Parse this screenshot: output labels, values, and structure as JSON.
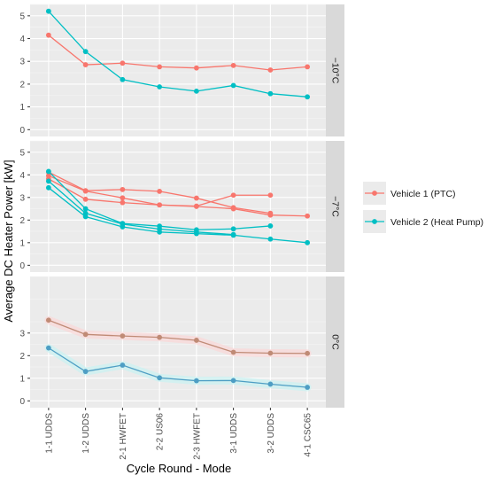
{
  "chart_data": {
    "type": "line",
    "xlabel": "Cycle Round - Mode",
    "ylabel": "Average DC Heater Power [kW]",
    "categories": [
      "1-1 UDDS",
      "1-2 UDDS",
      "2-1 HWFET",
      "2-2 US06",
      "2-3 HWFET",
      "3-1 UDDS",
      "3-2 UDDS",
      "4-1 CSC65"
    ],
    "legend": {
      "placement": "right",
      "entries": [
        {
          "label": "Vehicle 1 (PTC)",
          "color": "#F8766D"
        },
        {
          "label": "Vehicle 2 (Heat Pump)",
          "color": "#00BFC4"
        }
      ]
    },
    "panels": [
      {
        "strip": "−10°C",
        "ylim": [
          -0.3,
          5.5
        ],
        "yticks": [
          0,
          1,
          2,
          3,
          4,
          5
        ],
        "series": [
          {
            "name": "Vehicle 1 (PTC)",
            "color": "#F8766D",
            "values": [
              4.15,
              2.85,
              2.92,
              2.76,
              2.71,
              2.82,
              2.62,
              2.76
            ]
          },
          {
            "name": "Vehicle 2 (Heat Pump)",
            "color": "#00BFC4",
            "values": [
              5.2,
              3.43,
              2.2,
              1.88,
              1.69,
              1.94,
              1.58,
              1.44
            ]
          }
        ]
      },
      {
        "strip": "−7°C",
        "ylim": [
          -0.3,
          5.5
        ],
        "yticks": [
          0,
          1,
          2,
          3,
          4,
          5
        ],
        "series": [
          {
            "name": "Vehicle 1 (PTC)",
            "color": "#F8766D",
            "values": [
              4.12,
              3.3,
              3.35,
              3.27,
              2.97,
              2.55,
              2.3
            ]
          },
          {
            "name": "Vehicle 1 (PTC)",
            "color": "#F8766D",
            "values": [
              3.96,
              3.28,
              2.98,
              2.67,
              2.62,
              3.1,
              3.1
            ]
          },
          {
            "name": "Vehicle 1 (PTC)",
            "color": "#F8766D",
            "values": [
              3.82,
              2.92,
              2.77,
              2.67,
              2.6,
              2.5,
              2.22,
              2.18
            ]
          },
          {
            "name": "Vehicle 2 (Heat Pump)",
            "color": "#00BFC4",
            "values": [
              4.15,
              2.5,
              1.85,
              1.73,
              1.57,
              1.61,
              1.74
            ]
          },
          {
            "name": "Vehicle 2 (Heat Pump)",
            "color": "#00BFC4",
            "values": [
              3.72,
              2.3,
              1.82,
              1.6,
              1.47,
              1.36
            ]
          },
          {
            "name": "Vehicle 2 (Heat Pump)",
            "color": "#00BFC4",
            "values": [
              3.43,
              2.15,
              1.7,
              1.47,
              1.4,
              1.33,
              1.16,
              1.0
            ]
          }
        ]
      },
      {
        "strip": "0°C",
        "ylim": [
          -0.3,
          5.5
        ],
        "yticks": [
          0,
          1,
          2,
          3
        ],
        "series": [
          {
            "name": "Vehicle 1 (PTC)",
            "color": "#C08B76",
            "values": [
              3.57,
              2.94,
              2.87,
              2.81,
              2.68,
              2.15,
              2.11,
              2.1
            ]
          },
          {
            "name": "Vehicle 2 (Heat Pump)",
            "color": "#4E9EC4",
            "values": [
              2.34,
              1.3,
              1.58,
              1.02,
              0.89,
              0.9,
              0.74,
              0.6
            ]
          }
        ]
      }
    ]
  }
}
